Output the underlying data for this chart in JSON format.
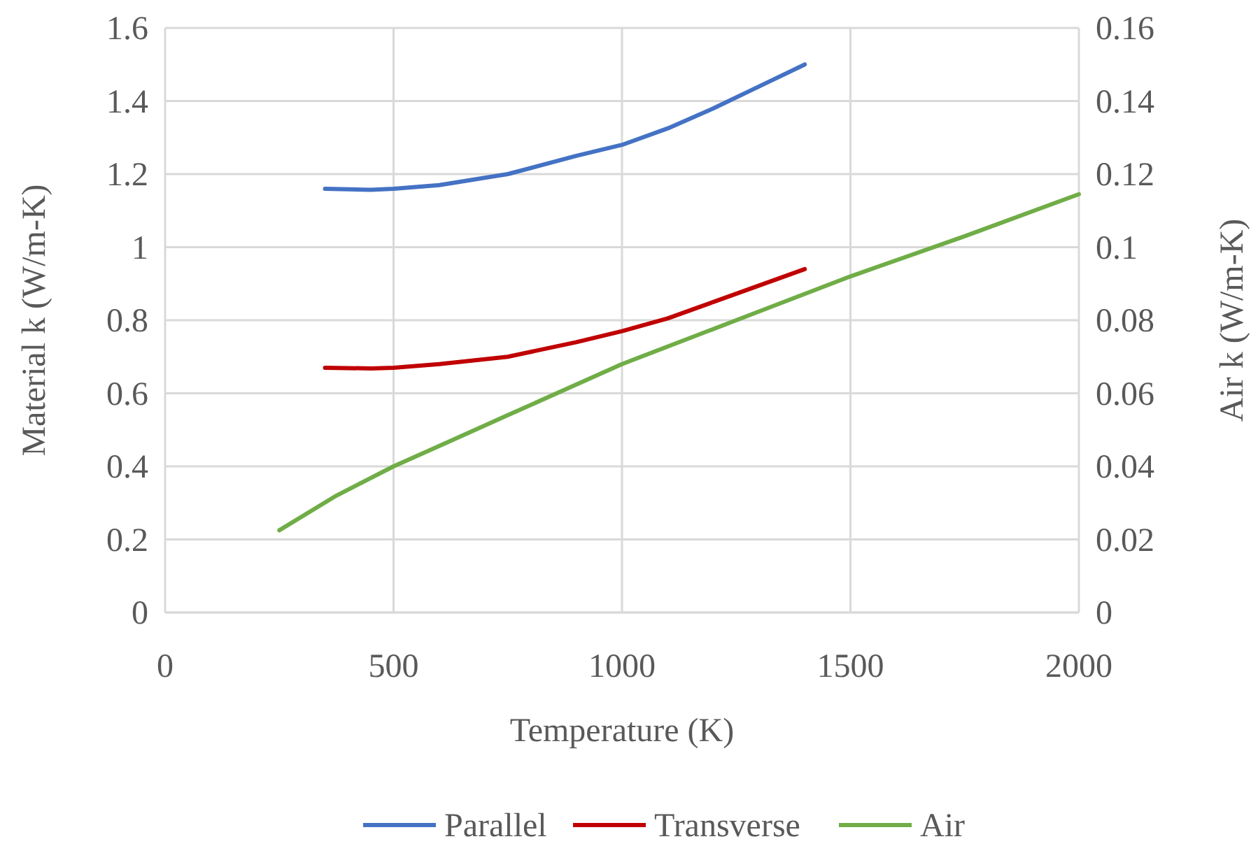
{
  "chart_data": {
    "type": "line",
    "xlabel": "Temperature (K)",
    "ylabel": "Material k (W/m-K)",
    "y2label": "Air k (W/m-K)",
    "xlim": [
      0,
      2000
    ],
    "xticks": [
      0,
      500,
      1000,
      1500,
      2000
    ],
    "ylim": [
      0,
      1.6
    ],
    "yticks": [
      0,
      0.2,
      0.4,
      0.6,
      0.8,
      1,
      1.2,
      1.4,
      1.6
    ],
    "y2lim": [
      0,
      0.16
    ],
    "y2ticks": [
      0,
      0.02,
      0.04,
      0.06,
      0.08,
      0.1,
      0.12,
      0.14,
      0.16
    ],
    "grid": true,
    "legend": "bottom",
    "marker": "none",
    "line_style": "solid",
    "series": [
      {
        "name": "Parallel",
        "color": "#4472c4",
        "x": [
          350,
          450,
          500,
          600,
          750,
          900,
          1000,
          1100,
          1200,
          1300,
          1400
        ],
        "values": [
          1.16,
          1.157,
          1.16,
          1.17,
          1.2,
          1.25,
          1.28,
          1.325,
          1.38,
          1.44,
          1.5
        ]
      },
      {
        "name": "Transverse",
        "color": "#c00000",
        "x": [
          350,
          450,
          500,
          600,
          750,
          900,
          1000,
          1100,
          1200,
          1300,
          1400
        ],
        "values": [
          0.67,
          0.668,
          0.67,
          0.68,
          0.7,
          0.74,
          0.77,
          0.805,
          0.85,
          0.895,
          0.94
        ]
      },
      {
        "name": "Air",
        "color": "#70ad47",
        "axis": "y2",
        "x": [
          250,
          375,
          500,
          625,
          750,
          875,
          1000,
          1250,
          1500,
          1750,
          2000
        ],
        "values": [
          0.0225,
          0.032,
          0.04,
          0.047,
          0.054,
          0.061,
          0.068,
          0.08,
          0.092,
          0.103,
          0.1145
        ]
      }
    ]
  }
}
